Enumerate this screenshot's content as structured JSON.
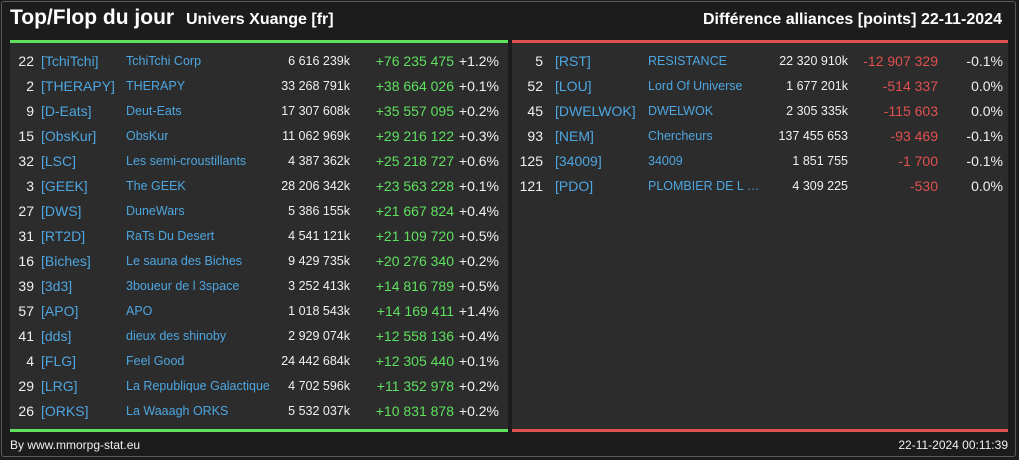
{
  "header": {
    "title": "Top/Flop du jour",
    "universe": "Univers Xuange [fr]",
    "metric": "Différence alliances [points]",
    "date": "22-11-2024"
  },
  "colors": {
    "positive": "#5fe05f",
    "negative": "#e05050",
    "tag": "#4ea6e0"
  },
  "top": [
    {
      "rank": "22",
      "tag": "[TchiTchi]",
      "name": "TchiTchi Corp",
      "score": "6 616 239k",
      "diff": "+76 235 475",
      "pct": "+1.2%"
    },
    {
      "rank": "2",
      "tag": "[THERAPY]",
      "name": "THERAPY",
      "score": "33 268 791k",
      "diff": "+38 664 026",
      "pct": "+0.1%"
    },
    {
      "rank": "9",
      "tag": "[D-Eats]",
      "name": "Deut-Eats",
      "score": "17 307 608k",
      "diff": "+35 557 095",
      "pct": "+0.2%"
    },
    {
      "rank": "15",
      "tag": "[ObsKur]",
      "name": "ObsKur",
      "score": "11 062 969k",
      "diff": "+29 216 122",
      "pct": "+0.3%"
    },
    {
      "rank": "32",
      "tag": "[LSC]",
      "name": "Les semi-croustillants",
      "score": "4 387 362k",
      "diff": "+25 218 727",
      "pct": "+0.6%"
    },
    {
      "rank": "3",
      "tag": "[GEEK]",
      "name": "The GEEK",
      "score": "28 206 342k",
      "diff": "+23 563 228",
      "pct": "+0.1%"
    },
    {
      "rank": "27",
      "tag": "[DWS]",
      "name": "DuneWars",
      "score": "5 386 155k",
      "diff": "+21 667 824",
      "pct": "+0.4%"
    },
    {
      "rank": "31",
      "tag": "[RT2D]",
      "name": "RaTs Du Desert",
      "score": "4 541 121k",
      "diff": "+21 109 720",
      "pct": "+0.5%"
    },
    {
      "rank": "16",
      "tag": "[Biches]",
      "name": "Le sauna des Biches",
      "score": "9 429 735k",
      "diff": "+20 276 340",
      "pct": "+0.2%"
    },
    {
      "rank": "39",
      "tag": "[3d3]",
      "name": "3boueur de l 3space",
      "score": "3 252 413k",
      "diff": "+14 816 789",
      "pct": "+0.5%"
    },
    {
      "rank": "57",
      "tag": "[APO]",
      "name": "APO",
      "score": "1 018 543k",
      "diff": "+14 169 411",
      "pct": "+1.4%"
    },
    {
      "rank": "41",
      "tag": "[dds]",
      "name": "dieux des shinoby",
      "score": "2 929 074k",
      "diff": "+12 558 136",
      "pct": "+0.4%"
    },
    {
      "rank": "4",
      "tag": "[FLG]",
      "name": "Feel Good",
      "score": "24 442 684k",
      "diff": "+12 305 440",
      "pct": "+0.1%"
    },
    {
      "rank": "29",
      "tag": "[LRG]",
      "name": "La Republique Galactique",
      "score": "4 702 596k",
      "diff": "+11 352 978",
      "pct": "+0.2%"
    },
    {
      "rank": "26",
      "tag": "[ORKS]",
      "name": "La Waaagh ORKS",
      "score": "5 532 037k",
      "diff": "+10 831 878",
      "pct": "+0.2%"
    }
  ],
  "flop": [
    {
      "rank": "5",
      "tag": "[RST]",
      "name": "RESISTANCE",
      "score": "22 320 910k",
      "diff": "-12 907 329",
      "pct": "-0.1%"
    },
    {
      "rank": "52",
      "tag": "[LOU]",
      "name": "Lord Of Universe",
      "score": "1 677 201k",
      "diff": "-514 337",
      "pct": "0.0%"
    },
    {
      "rank": "45",
      "tag": "[DWELWOK]",
      "name": "DWELWOK",
      "score": "2 305 335k",
      "diff": "-115 603",
      "pct": "0.0%"
    },
    {
      "rank": "93",
      "tag": "[NEM]",
      "name": "Chercheurs",
      "score": "137 455 653",
      "diff": "-93 469",
      "pct": "-0.1%"
    },
    {
      "rank": "125",
      "tag": "[34009]",
      "name": "34009",
      "score": "1 851 755",
      "diff": "-1 700",
      "pct": "-0.1%"
    },
    {
      "rank": "121",
      "tag": "[PDO]",
      "name": "PLOMBIER DE L O...",
      "score": "4 309 225",
      "diff": "-530",
      "pct": "0.0%"
    }
  ],
  "footer": {
    "credit": "By www.mmorpg-stat.eu",
    "timestamp": "22-11-2024 00:11:39"
  }
}
